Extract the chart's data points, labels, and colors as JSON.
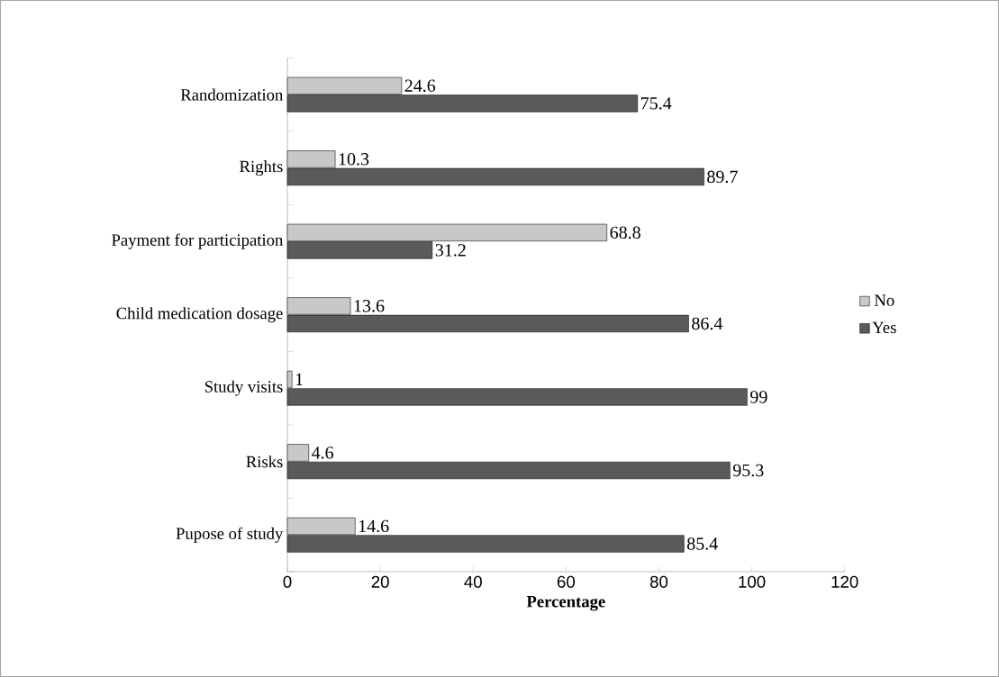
{
  "chart_data": {
    "type": "bar",
    "orientation": "horizontal",
    "xlabel": "Percentage",
    "categories": [
      "Randomization",
      "Rights",
      "Payment for participation",
      "Child medication dosage",
      "Study visits",
      "Risks",
      "Pupose of study"
    ],
    "series": [
      {
        "name": "No",
        "color": "#c8c8c8",
        "values": [
          24.6,
          10.3,
          68.8,
          13.6,
          1,
          4.6,
          14.6
        ],
        "value_labels": [
          "24.6",
          "10.3",
          "68.8",
          "13.6",
          "1",
          "4.6",
          "14.6"
        ]
      },
      {
        "name": "Yes",
        "color": "#5a5a5a",
        "values": [
          75.4,
          89.7,
          31.2,
          86.4,
          99,
          95.3,
          85.4
        ],
        "value_labels": [
          "75.4",
          "89.7",
          "31.2",
          "86.4",
          "99",
          "95.3",
          "85.4"
        ]
      }
    ],
    "xlim": [
      0,
      120
    ],
    "xticks": [
      0,
      20,
      40,
      60,
      80,
      100,
      120
    ],
    "grid": false,
    "legend": "right"
  }
}
